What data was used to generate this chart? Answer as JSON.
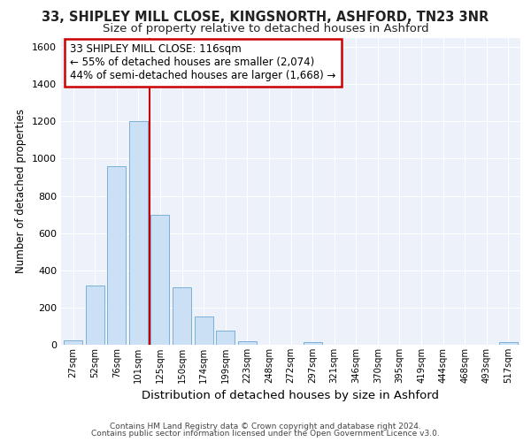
{
  "title1": "33, SHIPLEY MILL CLOSE, KINGSNORTH, ASHFORD, TN23 3NR",
  "title2": "Size of property relative to detached houses in Ashford",
  "xlabel": "Distribution of detached houses by size in Ashford",
  "ylabel": "Number of detached properties",
  "footnote1": "Contains HM Land Registry data © Crown copyright and database right 2024.",
  "footnote2": "Contains public sector information licensed under the Open Government Licence v3.0.",
  "categories": [
    "27sqm",
    "52sqm",
    "76sqm",
    "101sqm",
    "125sqm",
    "150sqm",
    "174sqm",
    "199sqm",
    "223sqm",
    "248sqm",
    "272sqm",
    "297sqm",
    "321sqm",
    "346sqm",
    "370sqm",
    "395sqm",
    "419sqm",
    "444sqm",
    "468sqm",
    "493sqm",
    "517sqm"
  ],
  "values": [
    25,
    320,
    960,
    1200,
    700,
    310,
    150,
    75,
    20,
    0,
    0,
    15,
    0,
    0,
    0,
    0,
    0,
    0,
    0,
    0,
    15
  ],
  "bar_color": "#cce0f5",
  "bar_edge_color": "#7ab0d8",
  "vline_x": 3.5,
  "vline_color": "#cc0000",
  "annotation_line1": "33 SHIPLEY MILL CLOSE: 116sqm",
  "annotation_line2": "← 55% of detached houses are smaller (2,074)",
  "annotation_line3": "44% of semi-detached houses are larger (1,668) →",
  "annotation_box_facecolor": "#ffffff",
  "annotation_border_color": "#cc0000",
  "ylim": [
    0,
    1650
  ],
  "yticks": [
    0,
    200,
    400,
    600,
    800,
    1000,
    1200,
    1400,
    1600
  ],
  "bg_color": "#edf2fa",
  "grid_color": "#ffffff",
  "fig_bg_color": "#ffffff",
  "title1_fontsize": 10.5,
  "title2_fontsize": 9.5,
  "xlabel_fontsize": 9.5,
  "ylabel_fontsize": 8.5,
  "annotation_fontsize": 8.5
}
